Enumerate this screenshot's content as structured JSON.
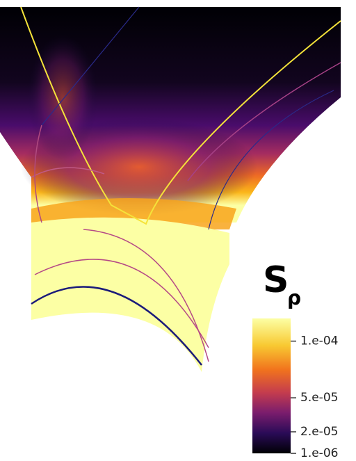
{
  "colorbar": {
    "title": "S",
    "subscript": "ρ",
    "range": [
      1e-06,
      0.00012
    ],
    "ticks": [
      {
        "value": 0.0001,
        "label": "1.e-04"
      },
      {
        "value": 5e-05,
        "label": "5.e-05"
      },
      {
        "value": 2e-05,
        "label": "2.e-05"
      },
      {
        "value": 1e-06,
        "label": "1.e-06"
      }
    ]
  }
}
